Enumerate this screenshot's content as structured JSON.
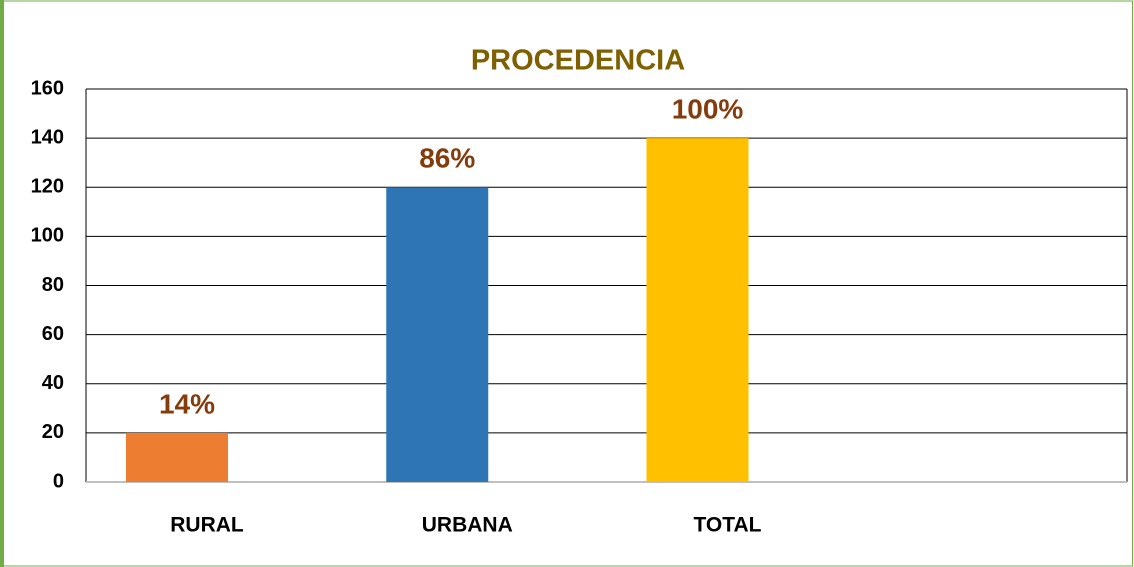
{
  "chart_data": {
    "type": "bar",
    "title": "PROCEDENCIA",
    "categories": [
      "RURAL",
      "URBANA",
      "TOTAL",
      null
    ],
    "values": [
      20,
      120,
      140,
      null
    ],
    "percent_labels": [
      "14%",
      "86%",
      "100%",
      null
    ],
    "colors": [
      "#ed7d31",
      "#2e75b6",
      "#ffc000",
      null
    ],
    "ylim": [
      0,
      160
    ],
    "yticks": [
      0,
      20,
      40,
      60,
      80,
      100,
      120,
      140,
      160
    ],
    "grid": true
  }
}
